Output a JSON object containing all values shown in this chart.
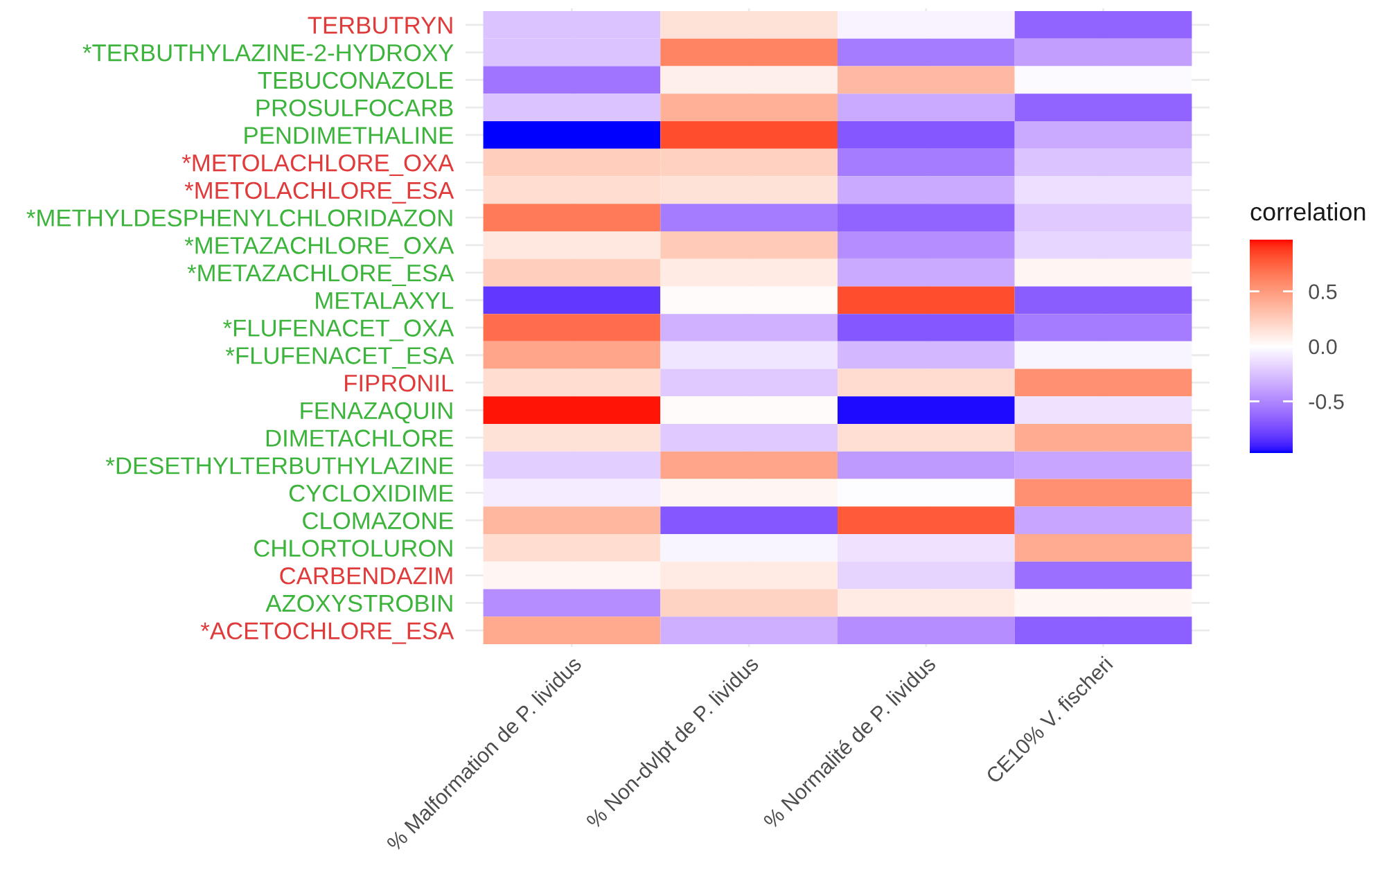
{
  "chart_data": {
    "type": "heatmap",
    "categories": [
      "% Malformation de P. lividus",
      "% Non-dvlpt de P. lividus",
      "% Normalité de P. lividus",
      "CE10% V. fischeri"
    ],
    "y_categories": [
      "TERBUTRYN",
      "*TERBUTHYLAZINE-2-HYDROXY",
      "TEBUCONAZOLE",
      "PROSULFOCARB",
      "PENDIMETHALINE",
      "*METOLACHLORE_OXA",
      "*METOLACHLORE_ESA",
      "*METHYLDESPHENYLCHLORIDAZON",
      "*METAZACHLORE_OXA",
      "*METAZACHLORE_ESA",
      "METALAXYL",
      "*FLUFENACET_OXA",
      "*FLUFENACET_ESA",
      "FIPRONIL",
      "FENAZAQUIN",
      "DIMETACHLORE",
      "*DESETHYLTERBUTHYLAZINE",
      "CYCLOXIDIME",
      "CLOMAZONE",
      "CHLORTOLURON",
      "CARBENDAZIM",
      "AZOXYSTROBIN",
      "*ACETOCHLORE_ESA"
    ],
    "cells": [
      [
        -0.25,
        0.15,
        -0.05,
        -0.65
      ],
      [
        -0.25,
        0.6,
        -0.55,
        -0.4
      ],
      [
        -0.58,
        0.08,
        0.35,
        -0.02
      ],
      [
        -0.25,
        0.4,
        -0.35,
        -0.65
      ],
      [
        -0.97,
        0.82,
        -0.7,
        -0.35
      ],
      [
        0.25,
        0.23,
        -0.55,
        -0.25
      ],
      [
        0.17,
        0.15,
        -0.35,
        -0.13
      ],
      [
        0.65,
        -0.55,
        -0.65,
        -0.22
      ],
      [
        0.12,
        0.27,
        -0.47,
        -0.17
      ],
      [
        0.25,
        0.1,
        -0.35,
        0.05
      ],
      [
        -0.82,
        0.02,
        0.82,
        -0.68
      ],
      [
        0.7,
        -0.32,
        -0.7,
        -0.55
      ],
      [
        0.45,
        -0.1,
        -0.3,
        -0.04
      ],
      [
        0.17,
        -0.22,
        0.18,
        0.55
      ],
      [
        0.95,
        0.02,
        -0.95,
        -0.12
      ],
      [
        0.15,
        -0.22,
        0.16,
        0.42
      ],
      [
        -0.2,
        0.45,
        -0.42,
        -0.37
      ],
      [
        -0.07,
        0.05,
        -0.01,
        0.55
      ],
      [
        0.36,
        -0.7,
        0.78,
        -0.37
      ],
      [
        0.17,
        -0.04,
        -0.12,
        0.42
      ],
      [
        0.05,
        0.1,
        -0.18,
        -0.6
      ],
      [
        -0.47,
        0.22,
        0.1,
        0.04
      ],
      [
        0.43,
        -0.33,
        -0.47,
        -0.67
      ]
    ],
    "clim": [
      -0.97,
      0.97
    ],
    "cticks": [
      {
        "value": -0.5,
        "label": "-0.5"
      },
      {
        "value": 0,
        "label": "0.0"
      },
      {
        "value": 0.5,
        "label": "0.5"
      }
    ],
    "clabel": "correlation",
    "grid": true
  }
}
